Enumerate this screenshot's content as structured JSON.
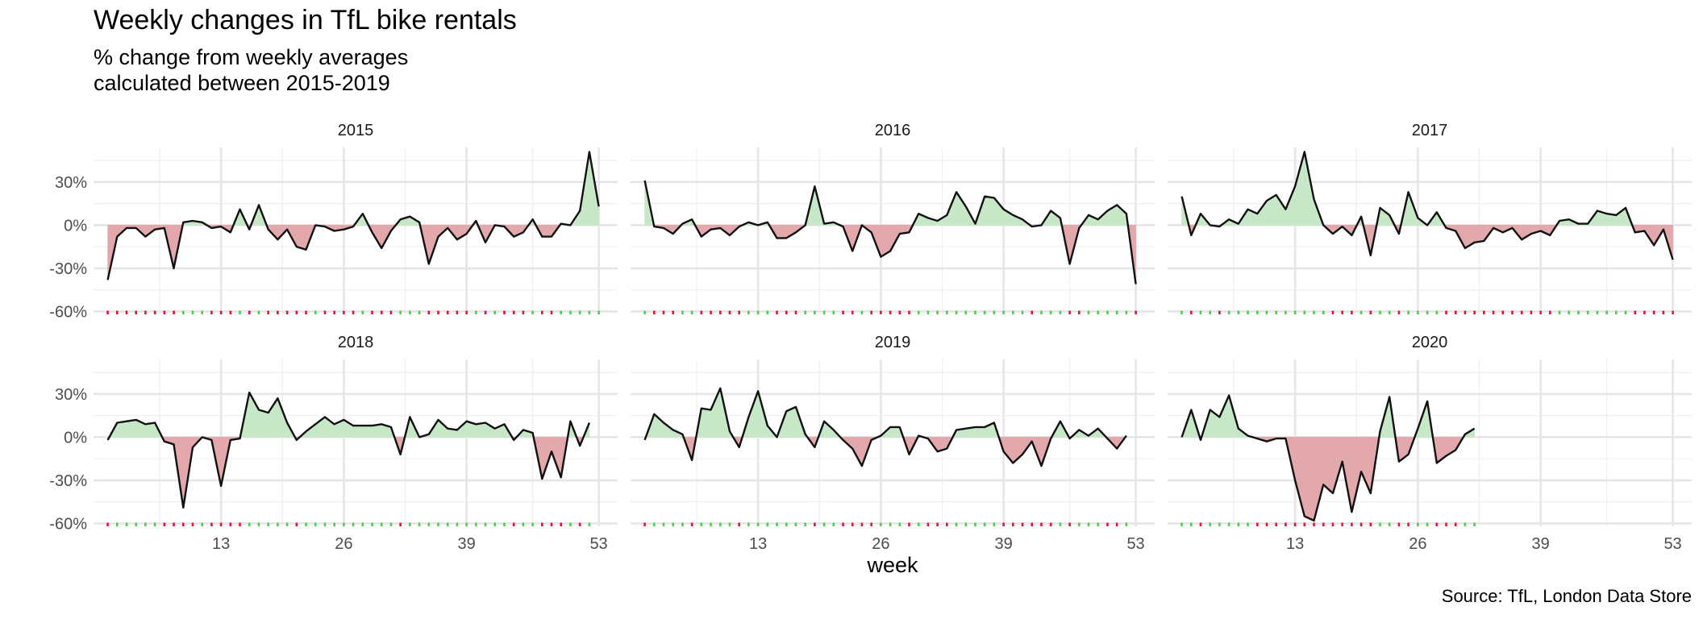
{
  "title": "Weekly changes in TfL bike rentals",
  "subtitle_line1": "% change from weekly averages",
  "subtitle_line2": "calculated between 2015-2019",
  "caption": "Source: TfL, London Data Store",
  "colors": {
    "positive": "#c6e8c6",
    "negative": "#e2a8ab",
    "line": "#111111",
    "tick_positive": "#4dcf4d",
    "tick_negative": "#e8123a"
  },
  "chart_data": {
    "type": "area",
    "xlabel": "week",
    "ylabel": "",
    "x_ticks": [
      13,
      26,
      39,
      53
    ],
    "x_tick_labels": [
      "13",
      "26",
      "39",
      "53"
    ],
    "y_ticks": [
      -0.6,
      -0.3,
      0,
      0.3
    ],
    "y_tick_labels": [
      "-60%",
      "-30%",
      "0%",
      "30%"
    ],
    "xlim": [
      -0.5,
      55
    ],
    "ylim": [
      -0.62,
      0.54
    ],
    "grid": true,
    "layout": "2 rows x 3 columns",
    "panels": [
      {
        "name": "2015",
        "values": [
          -0.38,
          -0.08,
          -0.02,
          -0.02,
          -0.08,
          -0.03,
          -0.02,
          -0.3,
          0.02,
          0.03,
          0.02,
          -0.02,
          -0.01,
          -0.05,
          0.11,
          -0.03,
          0.14,
          -0.03,
          -0.1,
          -0.03,
          -0.15,
          -0.17,
          0.0,
          -0.01,
          -0.04,
          -0.03,
          -0.01,
          0.08,
          -0.05,
          -0.16,
          -0.04,
          0.04,
          0.06,
          0.02,
          -0.27,
          -0.08,
          -0.02,
          -0.1,
          -0.06,
          0.03,
          -0.12,
          0.0,
          -0.01,
          -0.08,
          -0.05,
          0.04,
          -0.08,
          -0.08,
          0.01,
          0.0,
          0.1,
          0.51,
          0.13
        ]
      },
      {
        "name": "2016",
        "values": [
          0.31,
          -0.01,
          -0.02,
          -0.06,
          0.01,
          0.04,
          -0.08,
          -0.03,
          -0.02,
          -0.07,
          -0.01,
          0.02,
          0.0,
          0.02,
          -0.09,
          -0.09,
          -0.05,
          0.0,
          0.27,
          0.01,
          0.02,
          -0.01,
          -0.18,
          0.0,
          -0.05,
          -0.22,
          -0.18,
          -0.06,
          -0.05,
          0.08,
          0.05,
          0.03,
          0.07,
          0.23,
          0.13,
          0.01,
          0.2,
          0.19,
          0.11,
          0.07,
          0.04,
          -0.01,
          0.0,
          0.1,
          0.05,
          -0.27,
          -0.02,
          0.07,
          0.04,
          0.1,
          0.14,
          0.08,
          -0.41
        ]
      },
      {
        "name": "2017",
        "values": [
          0.2,
          -0.07,
          0.08,
          0.0,
          -0.01,
          0.04,
          0.01,
          0.11,
          0.08,
          0.17,
          0.21,
          0.11,
          0.27,
          0.51,
          0.18,
          0.0,
          -0.06,
          -0.01,
          -0.07,
          0.06,
          -0.21,
          0.12,
          0.07,
          -0.06,
          0.23,
          0.05,
          0.0,
          0.09,
          -0.02,
          -0.04,
          -0.16,
          -0.12,
          -0.11,
          -0.02,
          -0.05,
          -0.02,
          -0.1,
          -0.06,
          -0.04,
          -0.07,
          0.03,
          0.04,
          0.01,
          0.01,
          0.1,
          0.08,
          0.07,
          0.12,
          -0.05,
          -0.04,
          -0.14,
          -0.03,
          -0.24
        ]
      },
      {
        "name": "2018",
        "values": [
          -0.02,
          0.1,
          0.11,
          0.12,
          0.09,
          0.1,
          -0.03,
          -0.05,
          -0.49,
          -0.07,
          0.0,
          -0.02,
          -0.34,
          -0.02,
          -0.01,
          0.31,
          0.19,
          0.17,
          0.27,
          0.1,
          -0.02,
          0.04,
          0.09,
          0.14,
          0.09,
          0.12,
          0.08,
          0.08,
          0.08,
          0.09,
          0.07,
          -0.12,
          0.14,
          0.0,
          0.02,
          0.12,
          0.06,
          0.05,
          0.11,
          0.09,
          0.1,
          0.06,
          0.09,
          -0.02,
          0.05,
          0.03,
          -0.29,
          -0.1,
          -0.28,
          0.11,
          -0.06,
          0.1
        ]
      },
      {
        "name": "2019",
        "values": [
          -0.02,
          0.16,
          0.1,
          0.05,
          0.02,
          -0.16,
          0.2,
          0.19,
          0.34,
          0.04,
          -0.07,
          0.14,
          0.32,
          0.08,
          0.0,
          0.18,
          0.21,
          0.02,
          -0.07,
          0.11,
          0.05,
          -0.02,
          -0.08,
          -0.2,
          -0.02,
          0.01,
          0.07,
          0.07,
          -0.12,
          0.01,
          -0.01,
          -0.1,
          -0.08,
          0.05,
          0.06,
          0.07,
          0.07,
          0.1,
          -0.1,
          -0.18,
          -0.12,
          -0.03,
          -0.2,
          -0.01,
          0.11,
          -0.01,
          0.05,
          0.01,
          0.06,
          -0.01,
          -0.08,
          0.01
        ]
      },
      {
        "name": "2020",
        "values": [
          0.0,
          0.19,
          -0.02,
          0.19,
          0.14,
          0.29,
          0.06,
          0.01,
          -0.01,
          -0.03,
          -0.01,
          -0.01,
          -0.3,
          -0.55,
          -0.58,
          -0.33,
          -0.39,
          -0.17,
          -0.52,
          -0.24,
          -0.39,
          0.04,
          0.28,
          -0.17,
          -0.12,
          0.06,
          0.25,
          -0.18,
          -0.13,
          -0.09,
          0.02,
          0.06
        ]
      }
    ]
  }
}
